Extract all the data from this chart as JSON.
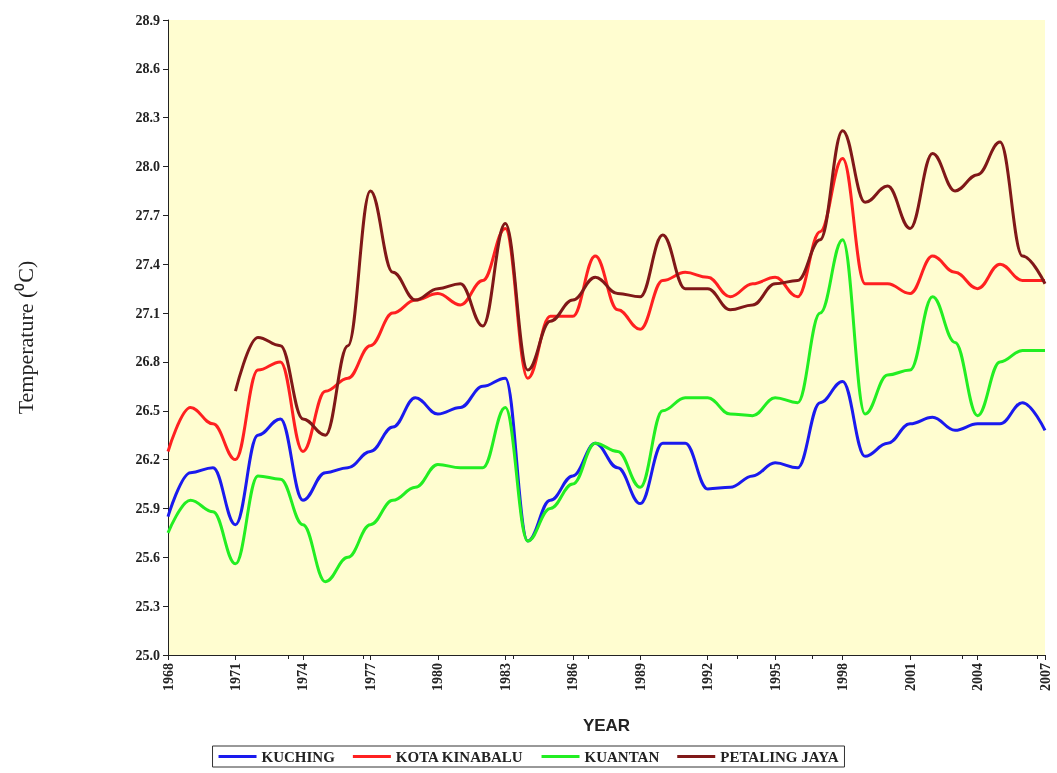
{
  "chart_data": {
    "type": "line",
    "xlabel": "YEAR",
    "ylabel": "Temperature (⁰C)",
    "x": [
      1968,
      1969,
      1970,
      1971,
      1972,
      1973,
      1974,
      1975,
      1976,
      1977,
      1978,
      1979,
      1980,
      1981,
      1982,
      1983,
      1984,
      1985,
      1986,
      1987,
      1988,
      1989,
      1990,
      1991,
      1992,
      1993,
      1994,
      1995,
      1996,
      1997,
      1998,
      1999,
      2000,
      2001,
      2002,
      2003,
      2004,
      2005,
      2006,
      2007
    ],
    "series": [
      {
        "name": "KUCHING",
        "color": "#1a1aee",
        "values": [
          25.85,
          26.12,
          26.15,
          25.8,
          26.35,
          26.45,
          25.95,
          26.12,
          26.15,
          26.25,
          26.4,
          26.58,
          26.48,
          26.52,
          26.65,
          26.7,
          25.7,
          25.95,
          26.1,
          26.3,
          26.15,
          25.93,
          26.3,
          26.3,
          26.02,
          26.03,
          26.1,
          26.18,
          26.15,
          26.55,
          26.68,
          26.22,
          26.3,
          26.42,
          26.46,
          26.38,
          26.42,
          26.42,
          26.55,
          26.38
        ]
      },
      {
        "name": "KOTA KINABALU",
        "color": "#ff2020",
        "values": [
          26.25,
          26.52,
          26.42,
          26.2,
          26.75,
          26.8,
          26.25,
          26.62,
          26.7,
          26.9,
          27.1,
          27.18,
          27.22,
          27.15,
          27.3,
          27.62,
          26.7,
          27.08,
          27.08,
          27.45,
          27.12,
          27.0,
          27.3,
          27.35,
          27.32,
          27.2,
          27.28,
          27.32,
          27.2,
          27.6,
          28.05,
          27.28,
          27.28,
          27.22,
          27.45,
          27.35,
          27.25,
          27.4,
          27.3,
          27.3
        ]
      },
      {
        "name": "KUANTAN",
        "color": "#22ee22",
        "values": [
          25.75,
          25.95,
          25.88,
          25.56,
          26.1,
          26.08,
          25.8,
          25.45,
          25.6,
          25.8,
          25.95,
          26.03,
          26.17,
          26.15,
          26.15,
          26.52,
          25.7,
          25.9,
          26.05,
          26.3,
          26.25,
          26.03,
          26.5,
          26.58,
          26.58,
          26.48,
          26.47,
          26.58,
          26.55,
          27.1,
          27.55,
          26.48,
          26.72,
          26.75,
          27.2,
          26.92,
          26.47,
          26.8,
          26.87,
          26.87
        ]
      },
      {
        "name": "PETALING JAYA",
        "color": "#801818",
        "values": [
          null,
          null,
          null,
          26.62,
          26.95,
          26.9,
          26.45,
          26.35,
          26.9,
          27.85,
          27.35,
          27.18,
          27.25,
          27.28,
          27.02,
          27.65,
          26.75,
          27.05,
          27.18,
          27.32,
          27.22,
          27.2,
          27.58,
          27.25,
          27.25,
          27.12,
          27.15,
          27.28,
          27.3,
          27.55,
          28.22,
          27.78,
          27.88,
          27.62,
          28.08,
          27.85,
          27.95,
          28.15,
          27.45,
          27.28
        ]
      }
    ],
    "xlim": [
      1968,
      2007
    ],
    "xticks": [
      1968,
      1971,
      1974,
      1977,
      1980,
      1983,
      1986,
      1989,
      1992,
      1995,
      1998,
      2001,
      2004,
      2007
    ],
    "ylim": [
      25.0,
      28.9
    ],
    "yticks": [
      {
        "value": 25.0,
        "label": "25.0"
      },
      25.3,
      25.6,
      25.9,
      26.2,
      26.5,
      26.8,
      27.1,
      27.4,
      27.7,
      {
        "value": 28.0,
        "label": "28.0"
      },
      28.3,
      28.6,
      28.9
    ],
    "grid": false,
    "legend": "bottom",
    "marker": "none",
    "line_style": "solid"
  }
}
